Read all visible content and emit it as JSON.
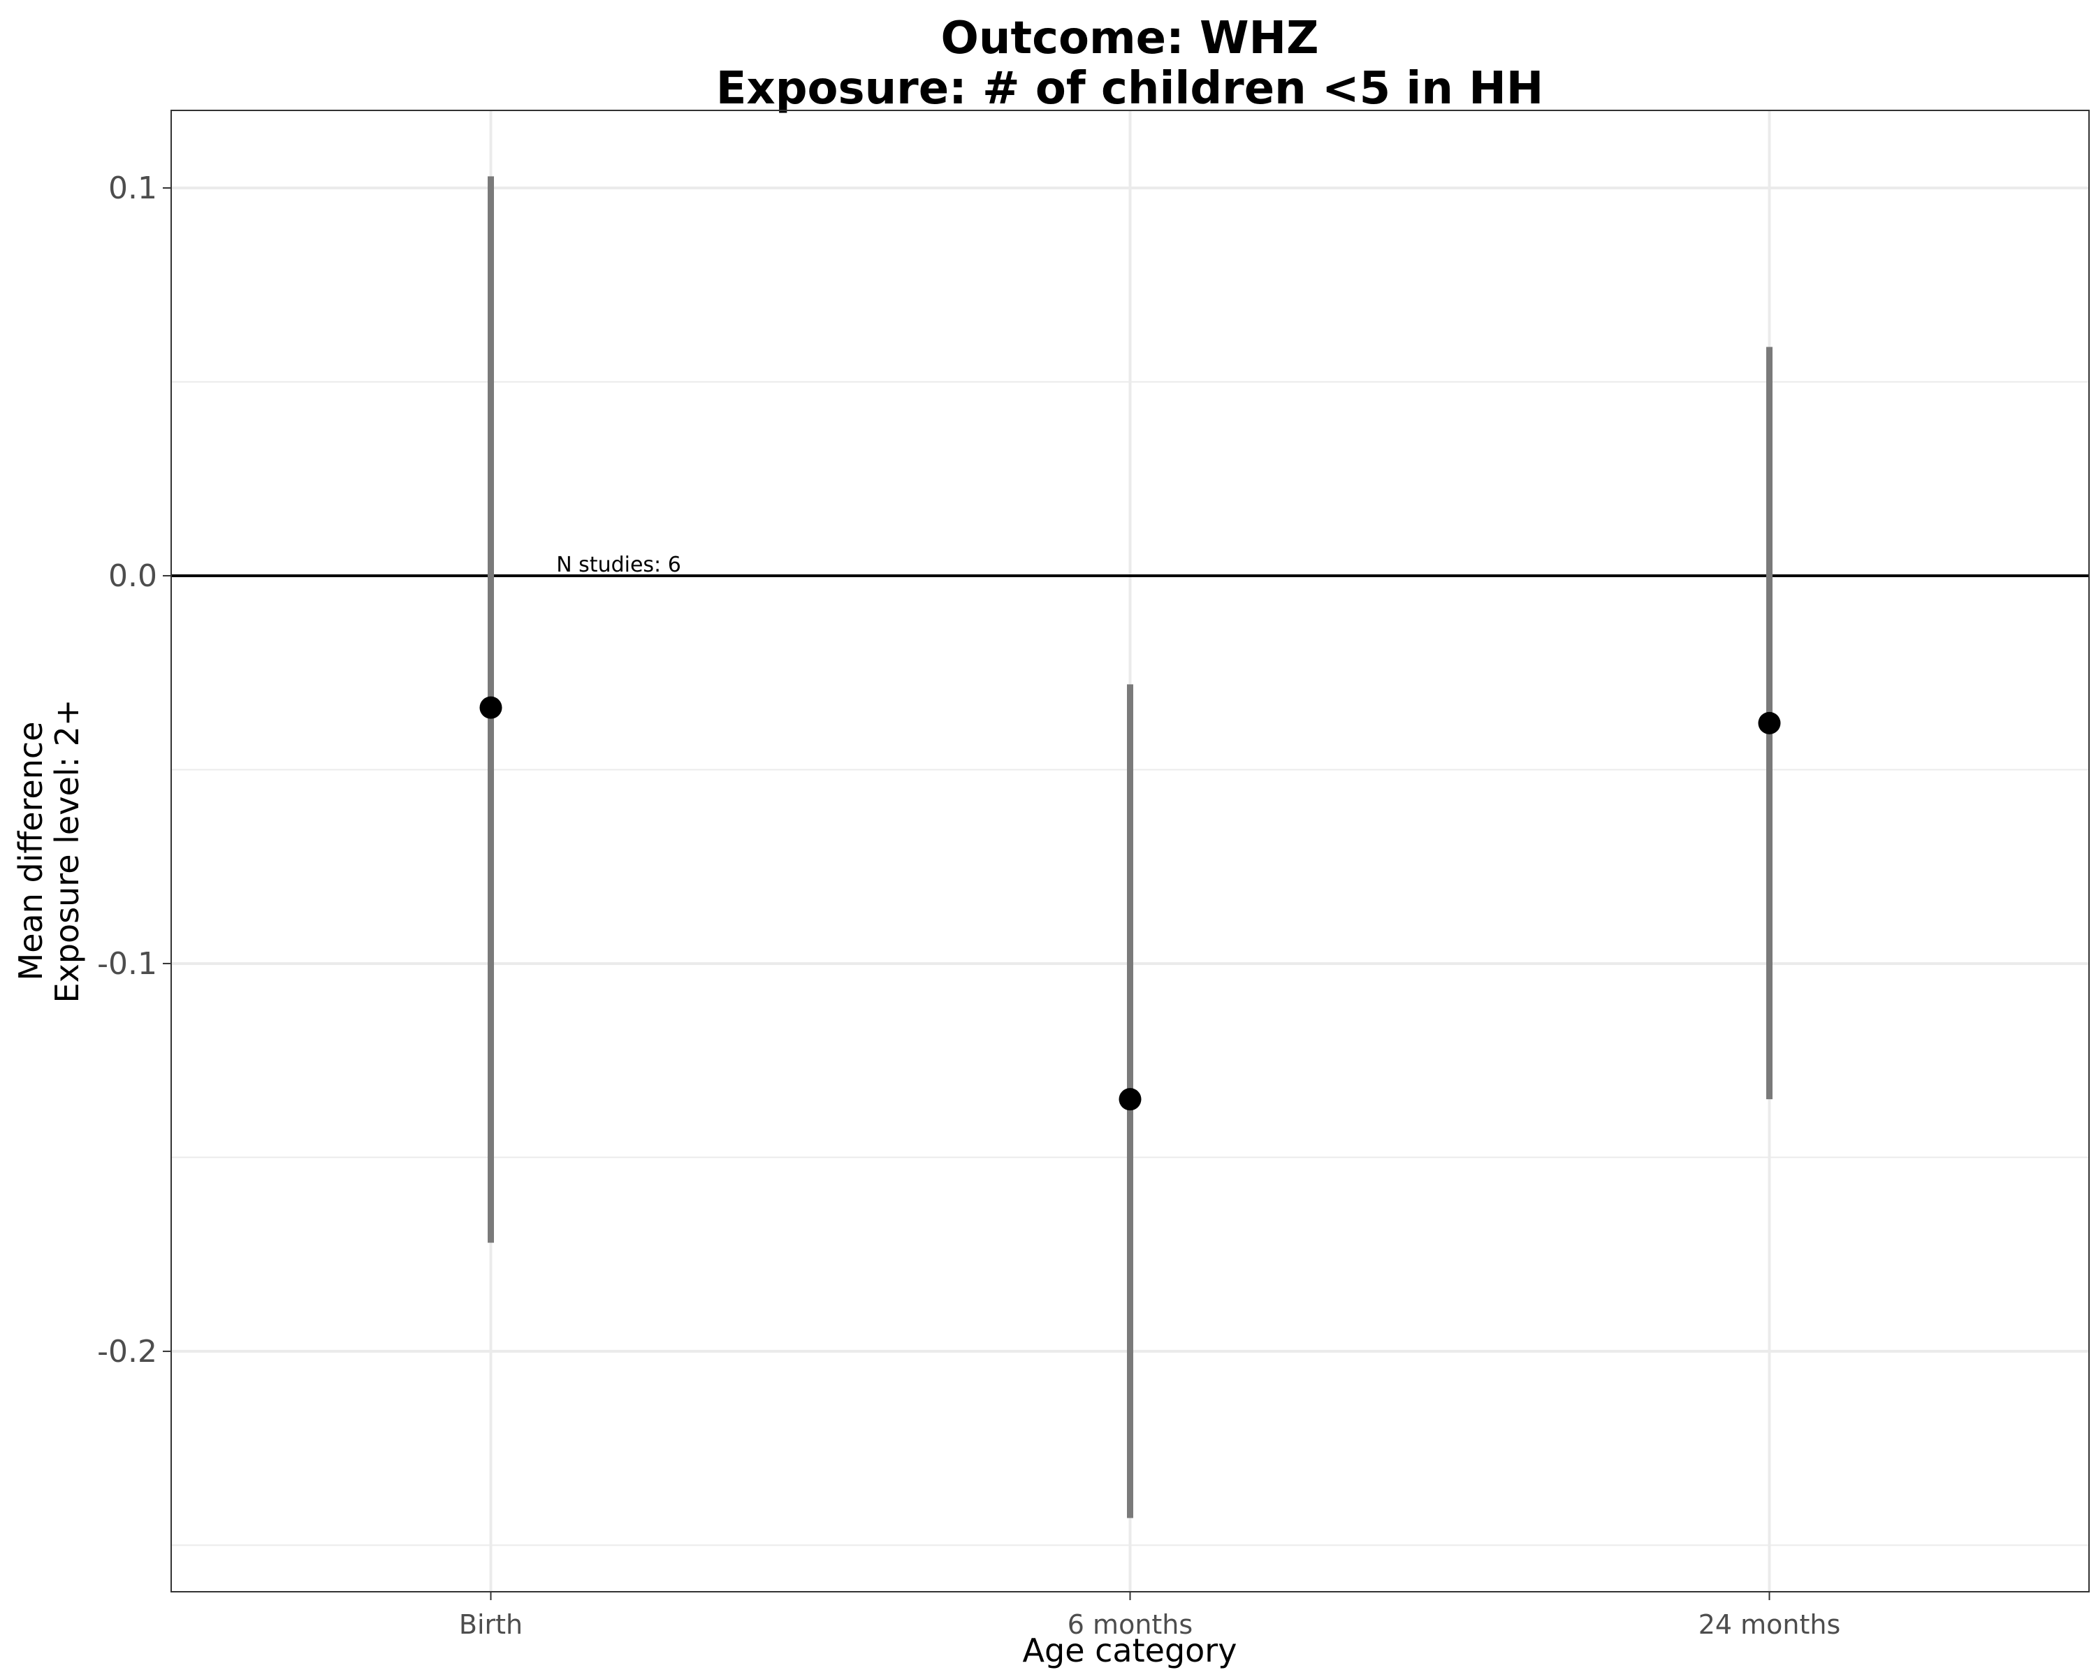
{
  "chart_data": {
    "type": "scatter",
    "title": "Outcome: WHZ",
    "subtitle": "Exposure: # of children <5 in HH",
    "xlabel": "Age category",
    "ylabel": [
      "Mean difference",
      "Exposure level: 2+"
    ],
    "categories": [
      "Birth",
      "6 months",
      "24 months"
    ],
    "series": [
      {
        "values": [
          -0.034,
          -0.135,
          -0.038
        ],
        "ci_lower": [
          -0.172,
          -0.243,
          -0.135
        ],
        "ci_upper": [
          0.103,
          -0.028,
          0.059
        ]
      }
    ],
    "yticks": [
      0.1,
      0.0,
      -0.1,
      -0.2
    ],
    "ytick_labels": [
      "0.1",
      "0.0",
      "-0.1",
      "-0.2"
    ],
    "ylim": [
      -0.262,
      0.12
    ],
    "reference_line": 0.0,
    "annotation": {
      "text": "N studies: 6",
      "category_position": 1.2,
      "y": 0.0
    },
    "grid": true,
    "legend": "none",
    "colors": {
      "point": "#000000",
      "error_bar": "#7a7a7a",
      "grid": "#ebebeb",
      "reference": "#000000"
    }
  }
}
